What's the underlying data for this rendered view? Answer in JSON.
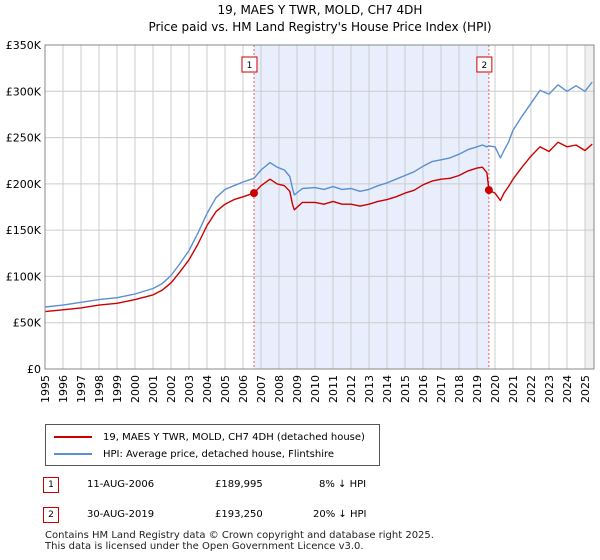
{
  "chart_data": {
    "type": "line",
    "title": "19, MAES Y TWR, MOLD, CH7 4DH",
    "subtitle": "Price paid vs. HM Land Registry's House Price Index (HPI)",
    "xlabel": "",
    "ylabel": "",
    "xlim": [
      1995,
      2025.5
    ],
    "ylim": [
      0,
      350000
    ],
    "y_ticks": [
      0,
      50000,
      100000,
      150000,
      200000,
      250000,
      300000,
      350000
    ],
    "y_tick_labels": [
      "£0",
      "£50K",
      "£100K",
      "£150K",
      "£200K",
      "£250K",
      "£300K",
      "£350K"
    ],
    "x_ticks": [
      "1995",
      "1996",
      "1997",
      "1998",
      "1999",
      "2000",
      "2001",
      "2002",
      "2003",
      "2004",
      "2005",
      "2006",
      "2007",
      "2008",
      "2009",
      "2010",
      "2011",
      "2012",
      "2013",
      "2014",
      "2015",
      "2016",
      "2017",
      "2018",
      "2019",
      "2020",
      "2021",
      "2022",
      "2023",
      "2024",
      "2025"
    ],
    "grid": true,
    "colors": {
      "property": "#cc0000",
      "hpi": "#5b8fd0",
      "shade": "#e8eefb"
    },
    "series": [
      {
        "name": "19, MAES Y TWR, MOLD, CH7 4DH (detached house)",
        "color": "#cc0000",
        "x": [
          1995.0,
          1996.0,
          1997.0,
          1998.0,
          1999.0,
          2000.0,
          2001.0,
          2001.5,
          2002.0,
          2002.5,
          2003.0,
          2003.5,
          2004.0,
          2004.5,
          2005.0,
          2005.5,
          2006.0,
          2006.61,
          2007.0,
          2007.5,
          2007.9,
          2008.3,
          2008.6,
          2008.75,
          2008.85,
          2009.3,
          2010.0,
          2010.5,
          2011.0,
          2011.5,
          2012.0,
          2012.5,
          2013.0,
          2013.5,
          2014.0,
          2014.5,
          2015.0,
          2015.5,
          2016.0,
          2016.5,
          2017.0,
          2017.5,
          2018.0,
          2018.5,
          2019.0,
          2019.3,
          2019.55,
          2019.66,
          2020.0,
          2020.3,
          2020.5,
          2020.75,
          2021.0,
          2021.5,
          2022.0,
          2022.5,
          2023.0,
          2023.5,
          2024.0,
          2024.5,
          2025.0,
          2025.4
        ],
        "values": [
          62000,
          64000,
          66000,
          69000,
          71000,
          75000,
          80000,
          85000,
          93000,
          105000,
          118000,
          135000,
          155000,
          170000,
          178000,
          183000,
          186000,
          189995,
          198000,
          205000,
          200000,
          198000,
          192000,
          178000,
          172000,
          180000,
          180000,
          178000,
          181000,
          178000,
          178000,
          176000,
          178000,
          181000,
          183000,
          186000,
          190000,
          193000,
          199000,
          203000,
          205000,
          206000,
          209000,
          214000,
          217000,
          218000,
          212000,
          193250,
          190000,
          182000,
          190000,
          197000,
          205000,
          218000,
          230000,
          240000,
          235000,
          245000,
          240000,
          242000,
          236000,
          243000
        ]
      },
      {
        "name": "HPI: Average price, detached house, Flintshire",
        "color": "#5b8fd0",
        "x": [
          1995.0,
          1996.0,
          1997.0,
          1998.0,
          1999.0,
          2000.0,
          2001.0,
          2001.5,
          2002.0,
          2002.5,
          2003.0,
          2003.5,
          2004.0,
          2004.5,
          2005.0,
          2005.5,
          2006.0,
          2006.61,
          2007.0,
          2007.5,
          2007.9,
          2008.3,
          2008.6,
          2008.75,
          2008.85,
          2009.3,
          2010.0,
          2010.5,
          2011.0,
          2011.5,
          2012.0,
          2012.5,
          2013.0,
          2013.5,
          2014.0,
          2014.5,
          2015.0,
          2015.5,
          2016.0,
          2016.5,
          2017.0,
          2017.5,
          2018.0,
          2018.5,
          2019.0,
          2019.3,
          2019.55,
          2019.66,
          2020.0,
          2020.3,
          2020.5,
          2020.75,
          2021.0,
          2021.5,
          2022.0,
          2022.5,
          2023.0,
          2023.5,
          2024.0,
          2024.5,
          2025.0,
          2025.4
        ],
        "values": [
          67000,
          69000,
          72000,
          75000,
          77000,
          81000,
          87000,
          92000,
          101000,
          114000,
          128000,
          147000,
          168000,
          185000,
          194000,
          198000,
          202000,
          206000,
          215000,
          223000,
          218000,
          215000,
          208000,
          195000,
          188000,
          195000,
          196000,
          194000,
          197000,
          194000,
          195000,
          192000,
          194000,
          198000,
          201000,
          205000,
          209000,
          213000,
          219000,
          224000,
          226000,
          228000,
          232000,
          237000,
          240000,
          242000,
          240000,
          241000,
          240000,
          228000,
          236000,
          245000,
          258000,
          273000,
          287000,
          301000,
          297000,
          307000,
          300000,
          306000,
          300000,
          310000
        ]
      }
    ],
    "annotations": [
      {
        "label": "1",
        "x": 2006.61,
        "y": 189995
      },
      {
        "label": "2",
        "x": 2019.66,
        "y": 193250
      }
    ]
  },
  "legend": {
    "property_label": "19, MAES Y TWR, MOLD, CH7 4DH (detached house)",
    "hpi_label": "HPI: Average price, detached house, Flintshire"
  },
  "sales": [
    {
      "num": "1",
      "date": "11-AUG-2006",
      "price": "£189,995",
      "delta": "8% ↓ HPI"
    },
    {
      "num": "2",
      "date": "30-AUG-2019",
      "price": "£193,250",
      "delta": "20% ↓ HPI"
    }
  ],
  "footer": {
    "line1": "Contains HM Land Registry data © Crown copyright and database right 2025.",
    "line2": "This data is licensed under the Open Government Licence v3.0."
  }
}
